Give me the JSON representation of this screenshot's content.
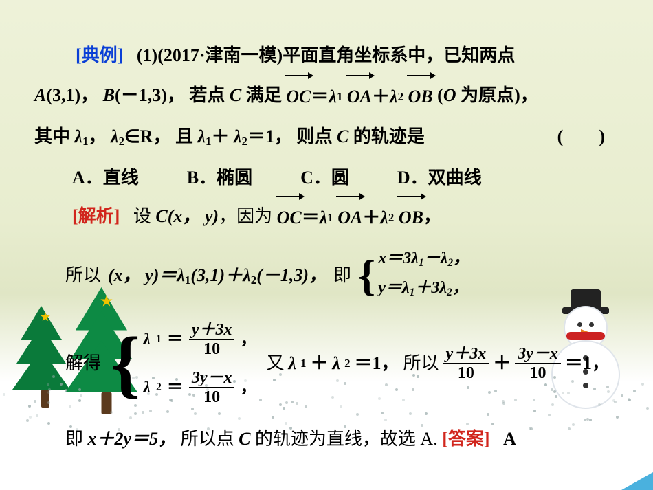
{
  "colors": {
    "blue": "#0a3fd6",
    "red": "#d1261d",
    "green_dark": "#0a7a3a",
    "green_light": "#0d8a44",
    "trunk": "#5b3a1e",
    "star": "#f2c200",
    "scarf": "#c22222",
    "corner": "#2aa3d8"
  },
  "typography": {
    "body_fontsize_pt": 20,
    "line_height": 2.0,
    "math_family": "Times New Roman"
  },
  "header": {
    "tag_open": "[",
    "tag_label": "典例",
    "tag_close": "]",
    "q_num": "(1)",
    "source": "(2017·津南一模)",
    "stem_1": "平面直角坐标系中，已知两点"
  },
  "givens": {
    "A_label": "A",
    "A_coords": "(3,1)",
    "sep1": "，",
    "B_label": "B",
    "B_coords": "(－1,3)",
    "sep2": "，",
    "c_phrase_pre": "若点 ",
    "C_label": "C",
    "c_phrase_mid": " 满足 ",
    "OC": "OC",
    "eq": "＝",
    "lambda1": "λ",
    "sub1": "1",
    "OA": "OA",
    "plus": "＋",
    "lambda2": "λ",
    "sub2": "2",
    "OB": "OB",
    "tail": "  (",
    "O_label": "O",
    "tail2": " 为原点)，"
  },
  "line3": {
    "pre": "其中 ",
    "l1": "λ",
    "s1": "1",
    "c1": "，",
    "l2": "λ",
    "s2": "2",
    "inR": "∈R，",
    "and": "且 ",
    "lhs1": "λ",
    "lhs1s": "1",
    "plus": "＋",
    "lhs2": "λ",
    "lhs2s": "2",
    "eq1": "＝1，",
    "then": "则点 ",
    "C": "C",
    "tail": " 的轨迹是",
    "paren": "(　　)"
  },
  "choices": {
    "A": "A．直线",
    "B": "B．椭圆",
    "C": "C．圆",
    "D": "D．双曲线"
  },
  "sol_tag": {
    "open": "[",
    "label": "解析",
    "close": "]"
  },
  "sol1": {
    "pre": "设 ",
    "C": "C",
    "xy": "(x， y)",
    "because": "，因为 ",
    "OC": "OC",
    "eq": "＝",
    "l1": "λ",
    "s1": "1",
    "OA": "OA",
    "plus": "＋",
    "l2": "λ",
    "s2": "2",
    "OB": "OB",
    "comma": "，"
  },
  "sol2": {
    "pre": "所以",
    "xy": "(x， y)＝",
    "l1": "λ",
    "s1": "1",
    "p1": "(3,1)＋",
    "l2": "λ",
    "s2": "2",
    "p2": "(－1,3)，",
    "ji": "即",
    "case1_lhs": "x＝3",
    "case1_l1": "λ",
    "case1_s1": "1",
    "case1_mid": "－",
    "case1_l2": "λ",
    "case1_s2": "2",
    "case1_end": "，",
    "case2_lhs": "y＝",
    "case2_l1": "λ",
    "case2_s1": "1",
    "case2_mid": "＋3",
    "case2_l2": "λ",
    "case2_s2": "2",
    "case2_end": "，"
  },
  "sol3": {
    "solve": "解得",
    "r1_l": "λ",
    "r1_s": "1",
    "r1_eq": "＝",
    "r1_num": "y＋3x",
    "r1_den": "10",
    "r1_end": "，",
    "r2_l": "λ",
    "r2_s": "2",
    "r2_eq": "＝",
    "r2_num": "3y－x",
    "r2_den": "10",
    "r2_end": "，",
    "you": "又 ",
    "l1": "λ",
    "s1": "1",
    "plus": "＋",
    "l2": "λ",
    "s2": "2",
    "eq1": "＝1，",
    "so": "所以 ",
    "f1_num": "y＋3x",
    "f1_den": "10",
    "plus2": "＋",
    "f2_num": "3y－x",
    "f2_den": "10",
    "eqend": "＝1，"
  },
  "sol4": {
    "pre": "即 ",
    "eq": "x＋2y＝5，",
    "mid": "所以点 ",
    "C": "C",
    "tail": " 的轨迹为直线，故选 A. "
  },
  "ans": {
    "open": "[",
    "label": "答案",
    "close": "]",
    "value": "A"
  }
}
